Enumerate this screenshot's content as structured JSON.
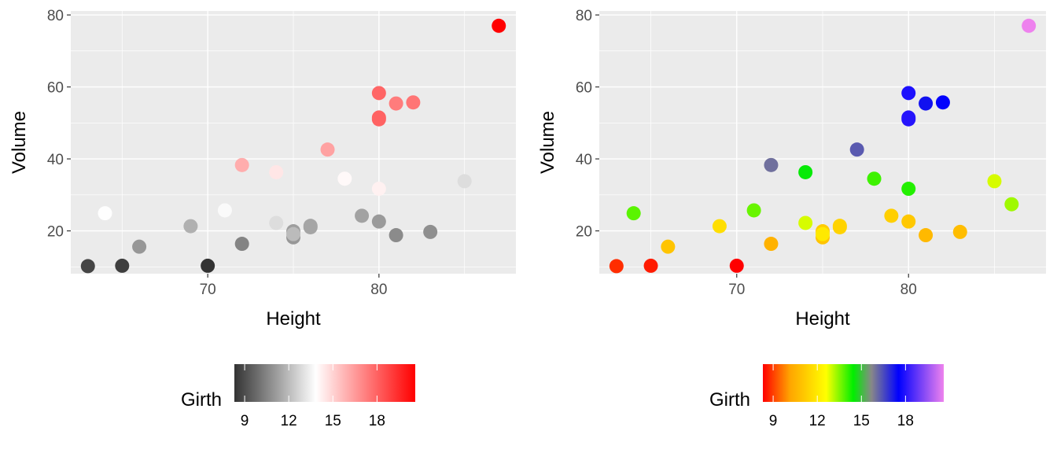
{
  "chart_data": [
    {
      "type": "scatter",
      "xlabel": "Height",
      "ylabel": "Volume",
      "xlim": [
        62,
        88
      ],
      "ylim": [
        8.1,
        81.1
      ],
      "xticks": [
        70,
        80
      ],
      "yticks": [
        20,
        40,
        60,
        80
      ],
      "grid": true,
      "legend": {
        "title": "Girth",
        "position": "bottom",
        "range": [
          8.3,
          20.6
        ],
        "ticks": [
          9,
          12,
          15,
          18
        ],
        "colors": [
          "#333333",
          "#ffffff",
          "#ff0000"
        ],
        "stops": [
          0,
          0.45,
          1
        ]
      },
      "points": [
        {
          "x": 70,
          "y": 10.3,
          "girth": 8.3
        },
        {
          "x": 65,
          "y": 10.3,
          "girth": 8.6
        },
        {
          "x": 63,
          "y": 10.2,
          "girth": 8.8
        },
        {
          "x": 72,
          "y": 16.4,
          "girth": 10.5
        },
        {
          "x": 81,
          "y": 18.8,
          "girth": 10.7
        },
        {
          "x": 83,
          "y": 19.7,
          "girth": 10.8
        },
        {
          "x": 66,
          "y": 15.6,
          "girth": 11.0
        },
        {
          "x": 75,
          "y": 18.2,
          "girth": 11.0
        },
        {
          "x": 80,
          "y": 22.6,
          "girth": 11.1
        },
        {
          "x": 75,
          "y": 19.9,
          "girth": 11.2
        },
        {
          "x": 79,
          "y": 24.2,
          "girth": 11.3
        },
        {
          "x": 76,
          "y": 21.0,
          "girth": 11.4
        },
        {
          "x": 76,
          "y": 21.4,
          "girth": 11.4
        },
        {
          "x": 69,
          "y": 21.3,
          "girth": 11.7
        },
        {
          "x": 75,
          "y": 19.1,
          "girth": 12.0
        },
        {
          "x": 74,
          "y": 22.2,
          "girth": 12.9
        },
        {
          "x": 85,
          "y": 33.8,
          "girth": 12.9
        },
        {
          "x": 86,
          "y": 27.4,
          "girth": 13.3
        },
        {
          "x": 71,
          "y": 25.7,
          "girth": 13.7
        },
        {
          "x": 64,
          "y": 24.9,
          "girth": 13.8
        },
        {
          "x": 78,
          "y": 34.5,
          "girth": 14.0
        },
        {
          "x": 80,
          "y": 31.7,
          "girth": 14.2
        },
        {
          "x": 74,
          "y": 36.3,
          "girth": 14.5
        },
        {
          "x": 72,
          "y": 38.3,
          "girth": 16.0
        },
        {
          "x": 77,
          "y": 42.6,
          "girth": 16.3
        },
        {
          "x": 81,
          "y": 55.4,
          "girth": 17.3
        },
        {
          "x": 82,
          "y": 55.7,
          "girth": 17.5
        },
        {
          "x": 80,
          "y": 58.3,
          "girth": 17.9
        },
        {
          "x": 80,
          "y": 51.5,
          "girth": 18.0
        },
        {
          "x": 80,
          "y": 51.0,
          "girth": 18.0
        },
        {
          "x": 87,
          "y": 77.0,
          "girth": 20.6
        }
      ]
    },
    {
      "type": "scatter",
      "xlabel": "Height",
      "ylabel": "Volume",
      "xlim": [
        62,
        88
      ],
      "ylim": [
        8.1,
        81.1
      ],
      "xticks": [
        70,
        80
      ],
      "yticks": [
        20,
        40,
        60,
        80
      ],
      "grid": true,
      "legend": {
        "title": "Girth",
        "position": "bottom",
        "range": [
          8.3,
          20.6
        ],
        "ticks": [
          9,
          12,
          15,
          18
        ],
        "colors": [
          "#ff0000",
          "#ffa500",
          "#ffff00",
          "#00ee00",
          "#888888",
          "#0000ff",
          "#ee82ee"
        ],
        "stops": [
          0,
          0.15,
          0.35,
          0.5,
          0.6,
          0.75,
          1
        ]
      },
      "points": [
        {
          "x": 70,
          "y": 10.3,
          "girth": 8.3
        },
        {
          "x": 65,
          "y": 10.3,
          "girth": 8.6
        },
        {
          "x": 63,
          "y": 10.2,
          "girth": 8.8
        },
        {
          "x": 72,
          "y": 16.4,
          "girth": 10.5
        },
        {
          "x": 81,
          "y": 18.8,
          "girth": 10.7
        },
        {
          "x": 83,
          "y": 19.7,
          "girth": 10.8
        },
        {
          "x": 66,
          "y": 15.6,
          "girth": 11.0
        },
        {
          "x": 75,
          "y": 18.2,
          "girth": 11.0
        },
        {
          "x": 80,
          "y": 22.6,
          "girth": 11.1
        },
        {
          "x": 75,
          "y": 19.9,
          "girth": 11.2
        },
        {
          "x": 79,
          "y": 24.2,
          "girth": 11.3
        },
        {
          "x": 76,
          "y": 21.0,
          "girth": 11.4
        },
        {
          "x": 76,
          "y": 21.4,
          "girth": 11.4
        },
        {
          "x": 69,
          "y": 21.3,
          "girth": 11.7
        },
        {
          "x": 75,
          "y": 19.1,
          "girth": 12.0
        },
        {
          "x": 74,
          "y": 22.2,
          "girth": 12.9
        },
        {
          "x": 85,
          "y": 33.8,
          "girth": 12.9
        },
        {
          "x": 86,
          "y": 27.4,
          "girth": 13.3
        },
        {
          "x": 71,
          "y": 25.7,
          "girth": 13.7
        },
        {
          "x": 64,
          "y": 24.9,
          "girth": 13.8
        },
        {
          "x": 78,
          "y": 34.5,
          "girth": 14.0
        },
        {
          "x": 80,
          "y": 31.7,
          "girth": 14.2
        },
        {
          "x": 74,
          "y": 36.3,
          "girth": 14.5
        },
        {
          "x": 72,
          "y": 38.3,
          "girth": 16.0
        },
        {
          "x": 77,
          "y": 42.6,
          "girth": 16.3
        },
        {
          "x": 81,
          "y": 55.4,
          "girth": 17.3
        },
        {
          "x": 82,
          "y": 55.7,
          "girth": 17.5
        },
        {
          "x": 80,
          "y": 58.3,
          "girth": 17.9
        },
        {
          "x": 80,
          "y": 51.5,
          "girth": 18.0
        },
        {
          "x": 80,
          "y": 51.0,
          "girth": 18.0
        },
        {
          "x": 87,
          "y": 77.0,
          "girth": 20.6
        }
      ]
    }
  ]
}
